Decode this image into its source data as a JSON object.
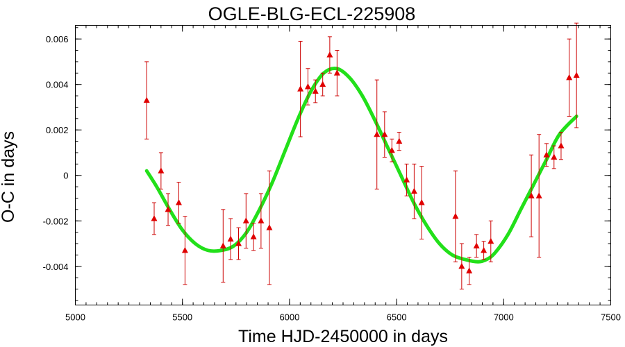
{
  "chart_data": {
    "type": "scatter",
    "title": "OGLE-BLG-ECL-225908",
    "xlabel": "Time HJD-2450000 in days",
    "ylabel": "O-C in days",
    "xlim": [
      5000,
      7500
    ],
    "ylim": [
      -0.0057,
      0.0066
    ],
    "xticks": [
      5000,
      5500,
      6000,
      6500,
      7000,
      7500
    ],
    "xtick_labels": [
      "5000",
      "5500",
      "6000",
      "6500",
      "7000",
      "7500"
    ],
    "yticks": [
      -0.004,
      -0.002,
      0,
      0.002,
      0.004,
      0.006
    ],
    "ytick_labels": [
      "-0.004",
      "-0.002",
      "0",
      "0.002",
      "0.004",
      "0.006"
    ],
    "grid": false,
    "legend": "none",
    "colors": {
      "points": "#e00000",
      "errorbars": "#cc0000",
      "fit": "#22e01a"
    },
    "series": [
      {
        "kind": "points-with-errorbars",
        "x": [
          5333,
          5368,
          5400,
          5433,
          5483,
          5512,
          5690,
          5725,
          5762,
          5797,
          5832,
          5867,
          5906,
          6051,
          6086,
          6121,
          6155,
          6188,
          6222,
          6408,
          6444,
          6478,
          6512,
          6547,
          6582,
          6617,
          6775,
          6804,
          6839,
          6873,
          6907,
          6940,
          7129,
          7165,
          7200,
          7235,
          7268,
          7306,
          7340
        ],
        "y": [
          0.0033,
          -0.0019,
          0.0002,
          -0.0015,
          -0.0012,
          -0.0033,
          -0.0031,
          -0.0028,
          -0.003,
          -0.002,
          -0.0027,
          -0.002,
          -0.0023,
          0.0038,
          0.0039,
          0.0037,
          0.004,
          0.0053,
          0.0045,
          0.0018,
          0.0018,
          0.0011,
          0.0015,
          -0.0002,
          -0.0007,
          -0.0012,
          -0.0018,
          -0.004,
          -0.0042,
          -0.0031,
          -0.0033,
          -0.0029,
          -0.0009,
          -0.0009,
          0.0009,
          0.0008,
          0.0013,
          0.0043,
          0.0044
        ],
        "yerr": [
          0.0017,
          0.0007,
          0.0008,
          0.0007,
          0.0009,
          0.0015,
          0.0016,
          0.0009,
          0.0007,
          0.0012,
          0.0006,
          0.0012,
          0.0025,
          0.0021,
          0.0008,
          0.0005,
          0.0005,
          0.0008,
          0.001,
          0.0024,
          0.001,
          0.0005,
          0.0004,
          0.0007,
          0.0012,
          0.0016,
          0.002,
          0.001,
          0.0006,
          0.0005,
          0.0004,
          0.0009,
          0.0018,
          0.0027,
          0.0005,
          0.0005,
          0.0006,
          0.0017,
          0.0023
        ]
      },
      {
        "kind": "fit-curve",
        "x": [
          5333,
          5380,
          5440,
          5500,
          5560,
          5620,
          5680,
          5740,
          5800,
          5860,
          5920,
          5980,
          6040,
          6100,
          6160,
          6220,
          6280,
          6340,
          6400,
          6460,
          6520,
          6580,
          6640,
          6700,
          6760,
          6820,
          6880,
          6920,
          6960,
          7020,
          7080,
          7140,
          7200,
          7260,
          7340
        ],
        "y": [
          0.0002,
          -0.0005,
          -0.0015,
          -0.0024,
          -0.003,
          -0.0033,
          -0.0033,
          -0.0031,
          -0.0025,
          -0.0015,
          -0.0003,
          0.0011,
          0.0025,
          0.0037,
          0.0045,
          0.0047,
          0.0043,
          0.0035,
          0.0024,
          0.0012,
          0.0,
          -0.0012,
          -0.0022,
          -0.003,
          -0.0035,
          -0.0037,
          -0.0038,
          -0.0037,
          -0.0034,
          -0.0026,
          -0.0015,
          -0.0004,
          0.0007,
          0.0018,
          0.0026
        ]
      }
    ]
  }
}
